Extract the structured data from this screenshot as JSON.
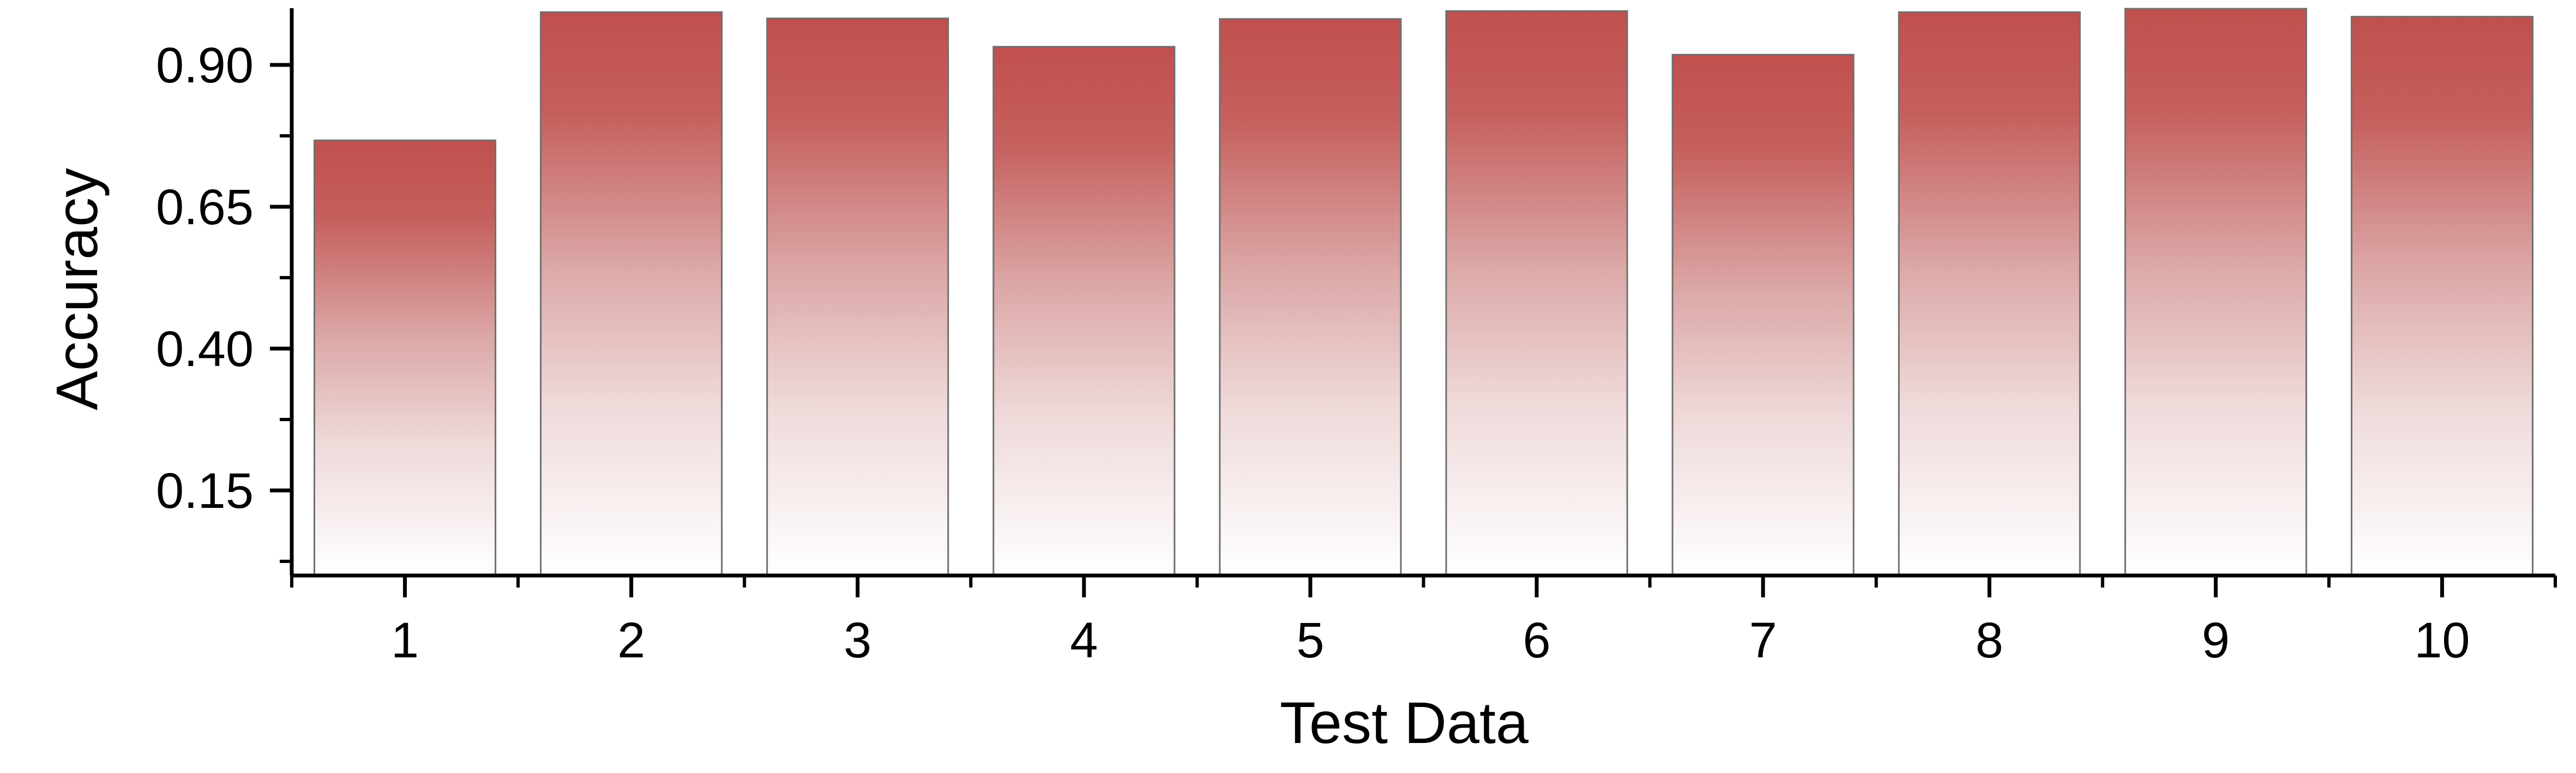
{
  "chart_data": {
    "type": "bar",
    "title": "",
    "xlabel": "Test Data",
    "ylabel": "Accuracy",
    "categories": [
      "1",
      "2",
      "3",
      "4",
      "5",
      "6",
      "7",
      "8",
      "9",
      "10"
    ],
    "values": [
      0.767,
      0.993,
      0.982,
      0.932,
      0.981,
      0.995,
      0.918,
      0.993,
      0.999,
      0.985
    ],
    "ylim": [
      0.0,
      1.0
    ],
    "yticks": [
      0.15,
      0.4,
      0.65,
      0.9
    ],
    "ytick_labels": [
      "0.15",
      "0.40",
      "0.65",
      "0.90"
    ],
    "grid": false,
    "legend": "none",
    "colors": {
      "bar_top": "#c0504d",
      "bar_bottom": "#ffffff",
      "bar_edge": "#6f6f6f",
      "axis": "#000000"
    }
  }
}
